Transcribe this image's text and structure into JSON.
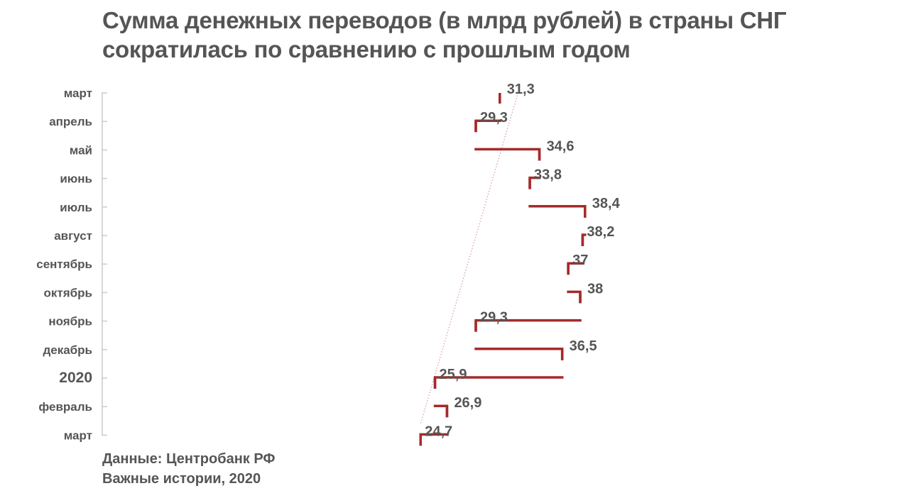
{
  "chart_data": {
    "type": "line",
    "title": "Сумма денежных переводов (в млрд рублей) в страны СНГ сократилась по сравнению с прошлым годом",
    "categories": [
      "март",
      "апрель",
      "май",
      "июнь",
      "июль",
      "август",
      "сентябрь",
      "октябрь",
      "ноябрь",
      "декабрь",
      "2020",
      "февраль",
      "март"
    ],
    "series": [
      {
        "values": [
          31.3,
          29.3,
          34.6,
          33.8,
          38.4,
          38.2,
          37,
          38,
          29.3,
          36.5,
          25.9,
          26.9,
          24.7
        ],
        "data_labels": [
          "31,3",
          "29,3",
          "34,6",
          "33,8",
          "38,4",
          "38,2",
          "37",
          "38",
          "29,3",
          "36,5",
          "25,9",
          "26,9",
          "24,7"
        ],
        "style": "step",
        "color": "#a52a2a"
      }
    ],
    "trend_line": {
      "from": 31.3,
      "to": 24.7,
      "style": "dotted",
      "color": "#d8a0a8"
    },
    "orientation": "vertical-categories",
    "value_axis_visible": false,
    "grid": false,
    "legend": "none"
  },
  "footer": {
    "source": "Данные: Центробанк РФ",
    "credit": "Важные истории, 2020"
  },
  "colors": {
    "text": "#555555",
    "line": "#a52a2a",
    "axis": "#cccccc"
  }
}
